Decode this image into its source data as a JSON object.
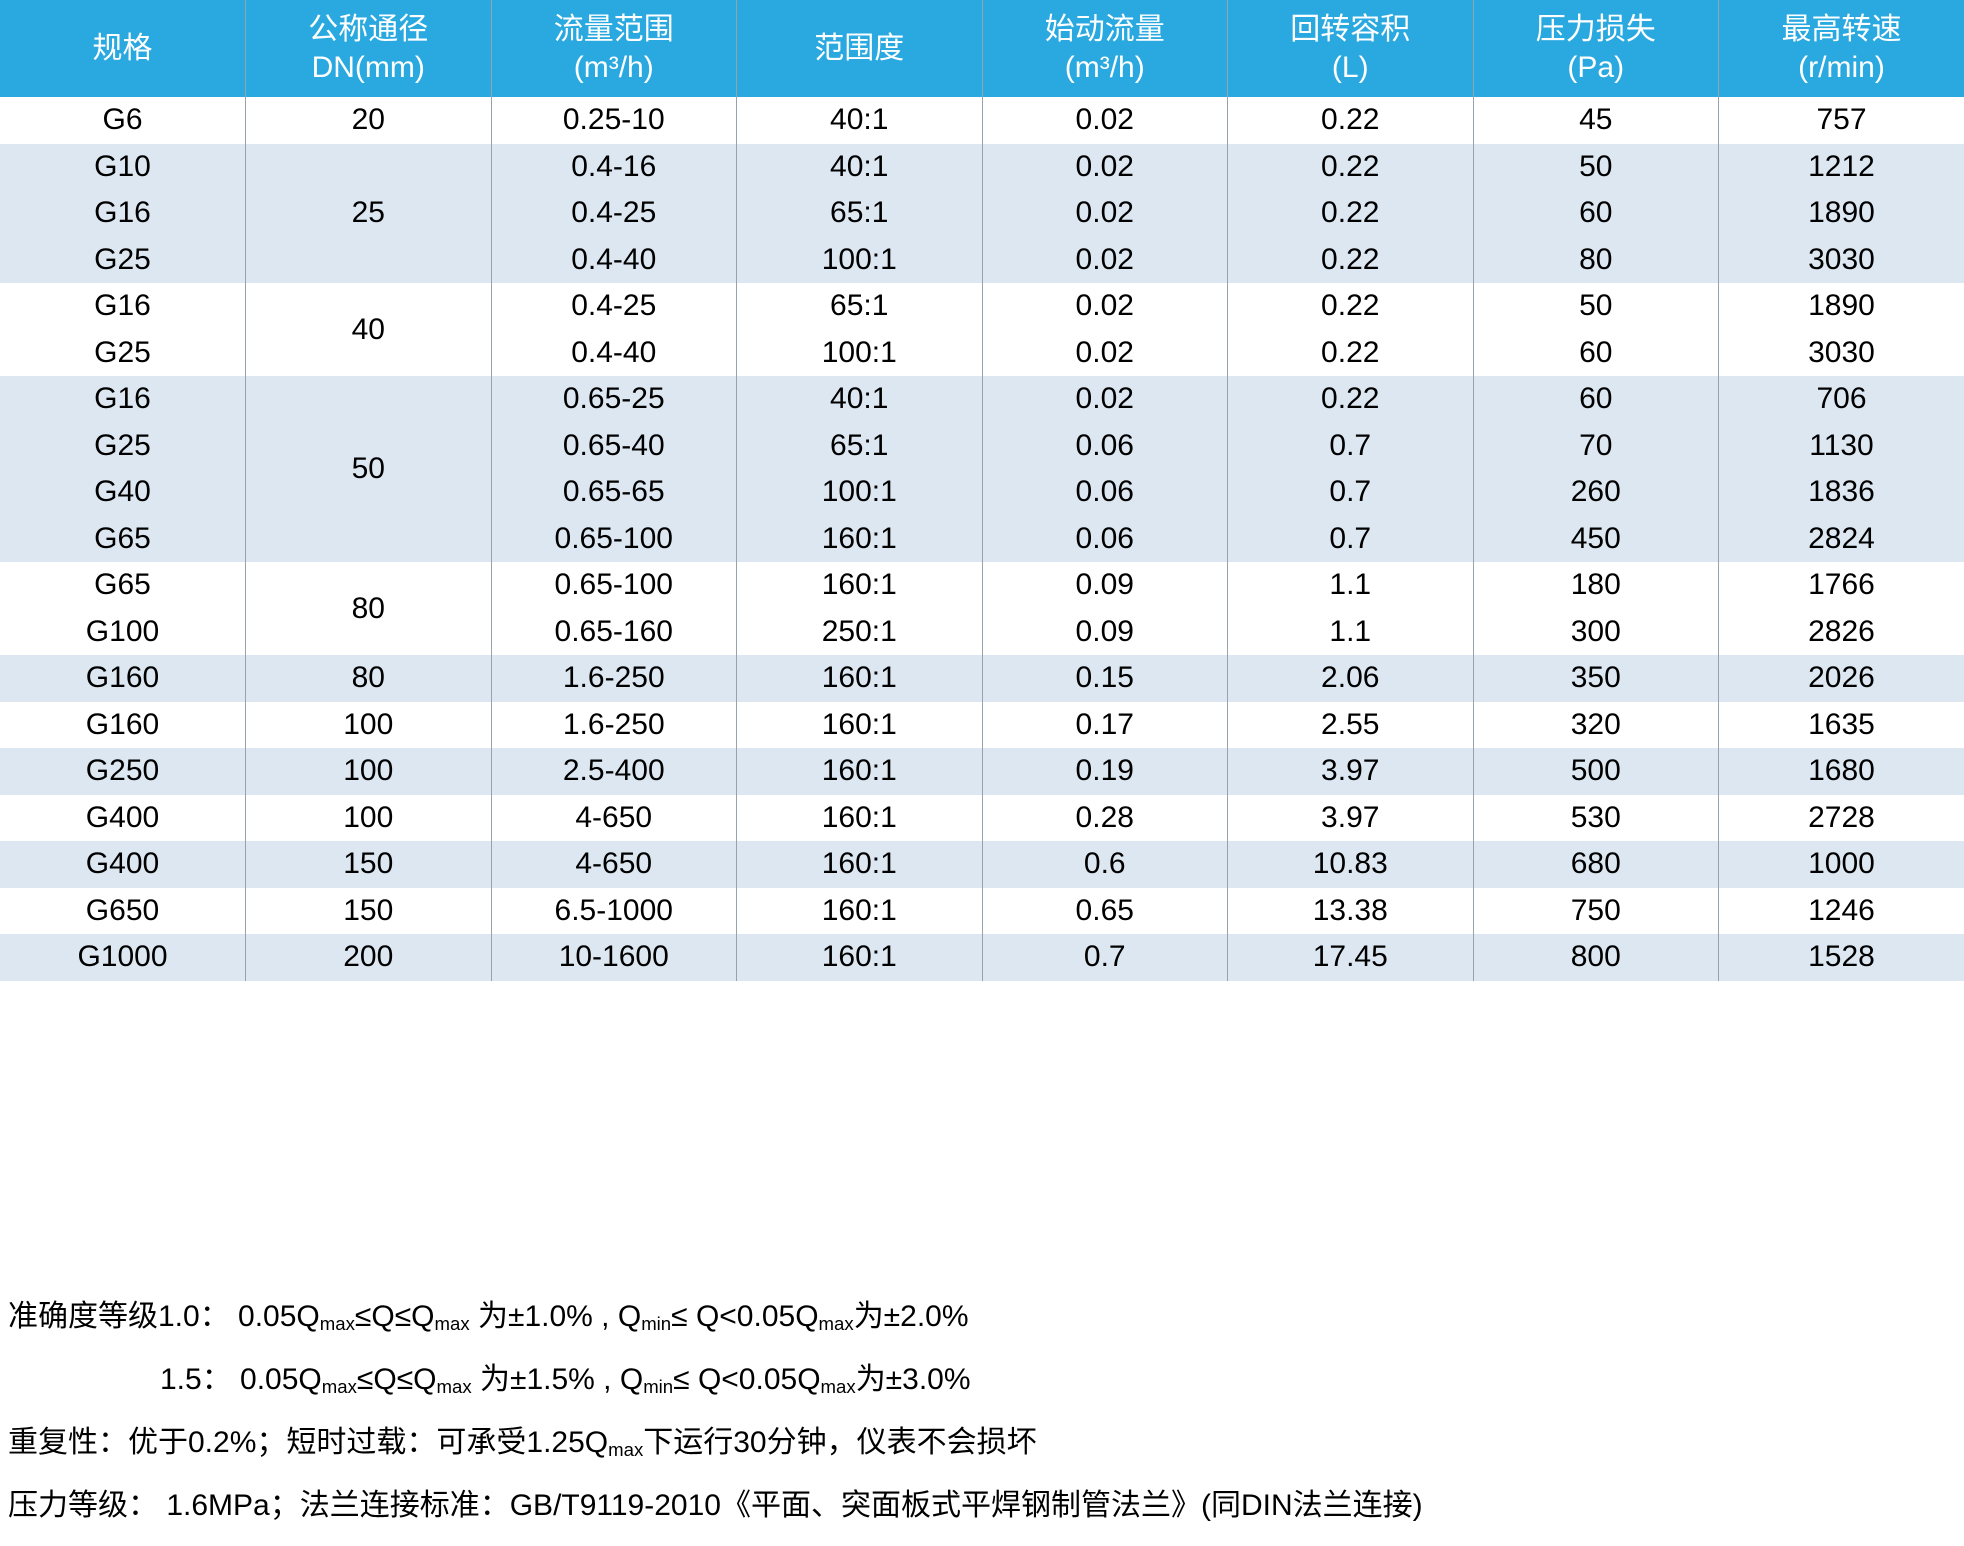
{
  "colors": {
    "header_bg": "#29a9e0",
    "band_bg": "#dce7f1",
    "border": "#98a2aa",
    "header_text": "#ffffff",
    "body_text": "#000000"
  },
  "table": {
    "headers": [
      {
        "key": "spec",
        "line1": "规格",
        "line2": ""
      },
      {
        "key": "dn",
        "line1": "公称通径",
        "line2": "DN(mm)"
      },
      {
        "key": "flow-range",
        "line1": "流量范围",
        "line2": "(m³/h)"
      },
      {
        "key": "rangeability",
        "line1": "范围度",
        "line2": ""
      },
      {
        "key": "start-flow",
        "line1": "始动流量",
        "line2": "(m³/h)"
      },
      {
        "key": "rotary-volume",
        "line1": "回转容积",
        "line2": "(L)"
      },
      {
        "key": "pressure-loss",
        "line1": "压力损失",
        "line2": "(Pa)"
      },
      {
        "key": "max-speed",
        "line1": "最高转速",
        "line2": "(r/min)"
      }
    ],
    "rows": [
      {
        "spec": "G6",
        "dn": "20",
        "span": 1,
        "flow": "0.25-10",
        "range": "40:1",
        "start": "0.02",
        "vol": "0.22",
        "loss": "45",
        "speed": "757",
        "band": "w"
      },
      {
        "spec": "G10",
        "dn": "25",
        "span": 3,
        "flow": "0.4-16",
        "range": "40:1",
        "start": "0.02",
        "vol": "0.22",
        "loss": "50",
        "speed": "1212",
        "band": "b"
      },
      {
        "spec": "G16",
        "flow": "0.4-25",
        "range": "65:1",
        "start": "0.02",
        "vol": "0.22",
        "loss": "60",
        "speed": "1890",
        "band": "b"
      },
      {
        "spec": "G25",
        "flow": "0.4-40",
        "range": "100:1",
        "start": "0.02",
        "vol": "0.22",
        "loss": "80",
        "speed": "3030",
        "band": "b"
      },
      {
        "spec": "G16",
        "dn": "40",
        "span": 2,
        "flow": "0.4-25",
        "range": "65:1",
        "start": "0.02",
        "vol": "0.22",
        "loss": "50",
        "speed": "1890",
        "band": "w"
      },
      {
        "spec": "G25",
        "flow": "0.4-40",
        "range": "100:1",
        "start": "0.02",
        "vol": "0.22",
        "loss": "60",
        "speed": "3030",
        "band": "w"
      },
      {
        "spec": "G16",
        "dn": "50",
        "span": 4,
        "flow": "0.65-25",
        "range": "40:1",
        "start": "0.02",
        "vol": "0.22",
        "loss": "60",
        "speed": "706",
        "band": "b"
      },
      {
        "spec": "G25",
        "flow": "0.65-40",
        "range": "65:1",
        "start": "0.06",
        "vol": "0.7",
        "loss": "70",
        "speed": "1130",
        "band": "b"
      },
      {
        "spec": "G40",
        "flow": "0.65-65",
        "range": "100:1",
        "start": "0.06",
        "vol": "0.7",
        "loss": "260",
        "speed": "1836",
        "band": "b"
      },
      {
        "spec": "G65",
        "flow": "0.65-100",
        "range": "160:1",
        "start": "0.06",
        "vol": "0.7",
        "loss": "450",
        "speed": "2824",
        "band": "b"
      },
      {
        "spec": "G65",
        "dn": "80",
        "span": 2,
        "flow": "0.65-100",
        "range": "160:1",
        "start": "0.09",
        "vol": "1.1",
        "loss": "180",
        "speed": "1766",
        "band": "w"
      },
      {
        "spec": "G100",
        "flow": "0.65-160",
        "range": "250:1",
        "start": "0.09",
        "vol": "1.1",
        "loss": "300",
        "speed": "2826",
        "band": "w"
      },
      {
        "spec": "G160",
        "dn": "80",
        "span": 1,
        "flow": "1.6-250",
        "range": "160:1",
        "start": "0.15",
        "vol": "2.06",
        "loss": "350",
        "speed": "2026",
        "band": "b"
      },
      {
        "spec": "G160",
        "dn": "100",
        "span": 1,
        "flow": "1.6-250",
        "range": "160:1",
        "start": "0.17",
        "vol": "2.55",
        "loss": "320",
        "speed": "1635",
        "band": "w"
      },
      {
        "spec": "G250",
        "dn": "100",
        "span": 1,
        "flow": "2.5-400",
        "range": "160:1",
        "start": "0.19",
        "vol": "3.97",
        "loss": "500",
        "speed": "1680",
        "band": "b"
      },
      {
        "spec": "G400",
        "dn": "100",
        "span": 1,
        "flow": "4-650",
        "range": "160:1",
        "start": "0.28",
        "vol": "3.97",
        "loss": "530",
        "speed": "2728",
        "band": "w"
      },
      {
        "spec": "G400",
        "dn": "150",
        "span": 1,
        "flow": "4-650",
        "range": "160:1",
        "start": "0.6",
        "vol": "10.83",
        "loss": "680",
        "speed": "1000",
        "band": "b"
      },
      {
        "spec": "G650",
        "dn": "150",
        "span": 1,
        "flow": "6.5-1000",
        "range": "160:1",
        "start": "0.65",
        "vol": "13.38",
        "loss": "750",
        "speed": "1246",
        "band": "w"
      },
      {
        "spec": "G1000",
        "dn": "200",
        "span": 1,
        "flow": "10-1600",
        "range": "160:1",
        "start": "0.7",
        "vol": "17.45",
        "loss": "800",
        "speed": "1528",
        "band": "b"
      }
    ]
  },
  "notes": {
    "lines": [
      [
        {
          "t": "准确度等级1.0：  0.05Q"
        },
        {
          "t": "max",
          "sub": true
        },
        {
          "t": "≤Q≤Q"
        },
        {
          "t": "max",
          "sub": true
        },
        {
          "t": " 为±1.0% , Q"
        },
        {
          "t": "min",
          "sub": true
        },
        {
          "t": "≤ Q<0.05Q"
        },
        {
          "t": "max",
          "sub": true
        },
        {
          "t": "为±2.0%"
        }
      ],
      [
        {
          "t": "1.5：  0.05Q"
        },
        {
          "t": "max",
          "sub": true
        },
        {
          "t": "≤Q≤Q"
        },
        {
          "t": "max",
          "sub": true
        },
        {
          "t": " 为±1.5% , Q"
        },
        {
          "t": "min",
          "sub": true
        },
        {
          "t": "≤ Q<0.05Q"
        },
        {
          "t": "max",
          "sub": true
        },
        {
          "t": "为±3.0%"
        }
      ],
      [
        {
          "t": "重复性：优于0.2%；短时过载：可承受1.25Q"
        },
        {
          "t": "max",
          "sub": true
        },
        {
          "t": "下运行30分钟，仪表不会损坏"
        }
      ],
      [
        {
          "t": "压力等级：  1.6MPa；法兰连接标准：GB/T9119-2010《平面、突面板式平焊钢制管法兰》(同DIN法兰连接)"
        }
      ]
    ]
  }
}
